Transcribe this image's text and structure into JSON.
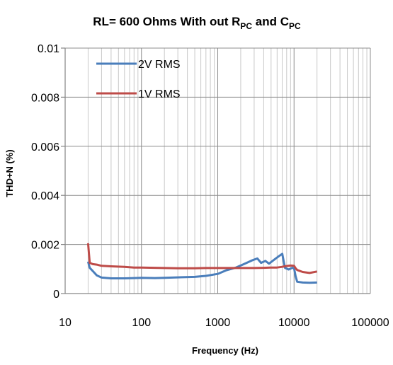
{
  "chart_data": {
    "type": "line",
    "title": {
      "prefix": "RL= 600 Ohms  With out R",
      "sub1": "PC",
      "mid": " and C",
      "sub2": "PC"
    },
    "xlabel": "Frequency (Hz)",
    "ylabel": "THD+N (%)",
    "x_scale": "log",
    "xlim": [
      10,
      100000
    ],
    "ylim": [
      0,
      0.01
    ],
    "x_ticks": [
      "10",
      "100",
      "1000",
      "10000",
      "100000"
    ],
    "x_tick_values": [
      10,
      100,
      1000,
      10000,
      100000
    ],
    "y_ticks": [
      "0",
      "0.002",
      "0.004",
      "0.006",
      "0.008",
      "0.01"
    ],
    "y_tick_values": [
      0,
      0.002,
      0.004,
      0.006,
      0.008,
      0.01
    ],
    "grid": "vertical-minor-and-major, horizontal-major",
    "legend_position": "top-left",
    "series": [
      {
        "name": "2V RMS",
        "color": "#4a7ebb",
        "points": [
          [
            20,
            0.0013
          ],
          [
            21,
            0.00105
          ],
          [
            23,
            0.00092
          ],
          [
            26,
            0.00074
          ],
          [
            30,
            0.00065
          ],
          [
            40,
            0.00062
          ],
          [
            60,
            0.00062
          ],
          [
            80,
            0.00063
          ],
          [
            100,
            0.00064
          ],
          [
            150,
            0.00063
          ],
          [
            200,
            0.00064
          ],
          [
            300,
            0.00066
          ],
          [
            500,
            0.00068
          ],
          [
            700,
            0.00072
          ],
          [
            1000,
            0.0008
          ],
          [
            1300,
            0.00095
          ],
          [
            1700,
            0.00105
          ],
          [
            2200,
            0.0012
          ],
          [
            2800,
            0.00135
          ],
          [
            3300,
            0.00143
          ],
          [
            3700,
            0.00125
          ],
          [
            4200,
            0.00133
          ],
          [
            4700,
            0.00122
          ],
          [
            5500,
            0.00138
          ],
          [
            6300,
            0.00152
          ],
          [
            7000,
            0.00162
          ],
          [
            7600,
            0.00105
          ],
          [
            8500,
            0.00098
          ],
          [
            9500,
            0.00105
          ],
          [
            10000,
            0.00103
          ],
          [
            10500,
            0.0007
          ],
          [
            11000,
            0.00048
          ],
          [
            13000,
            0.00045
          ],
          [
            16000,
            0.00044
          ],
          [
            20000,
            0.00045
          ]
        ]
      },
      {
        "name": "1V RMS",
        "color": "#be4b48",
        "points": [
          [
            20,
            0.00205
          ],
          [
            21,
            0.00125
          ],
          [
            23,
            0.0012
          ],
          [
            26,
            0.00118
          ],
          [
            30,
            0.00113
          ],
          [
            40,
            0.00111
          ],
          [
            60,
            0.00109
          ],
          [
            80,
            0.00106
          ],
          [
            100,
            0.00106
          ],
          [
            150,
            0.00105
          ],
          [
            200,
            0.00104
          ],
          [
            300,
            0.00103
          ],
          [
            500,
            0.00103
          ],
          [
            700,
            0.00104
          ],
          [
            1000,
            0.00104
          ],
          [
            2000,
            0.00104
          ],
          [
            3000,
            0.00104
          ],
          [
            4000,
            0.00105
          ],
          [
            5000,
            0.00106
          ],
          [
            6000,
            0.00106
          ],
          [
            7000,
            0.00109
          ],
          [
            7500,
            0.00111
          ],
          [
            9000,
            0.00114
          ],
          [
            10000,
            0.00113
          ],
          [
            10500,
            0.00103
          ],
          [
            11000,
            0.00096
          ],
          [
            13000,
            0.00088
          ],
          [
            16000,
            0.00084
          ],
          [
            20000,
            0.0009
          ]
        ]
      }
    ]
  }
}
